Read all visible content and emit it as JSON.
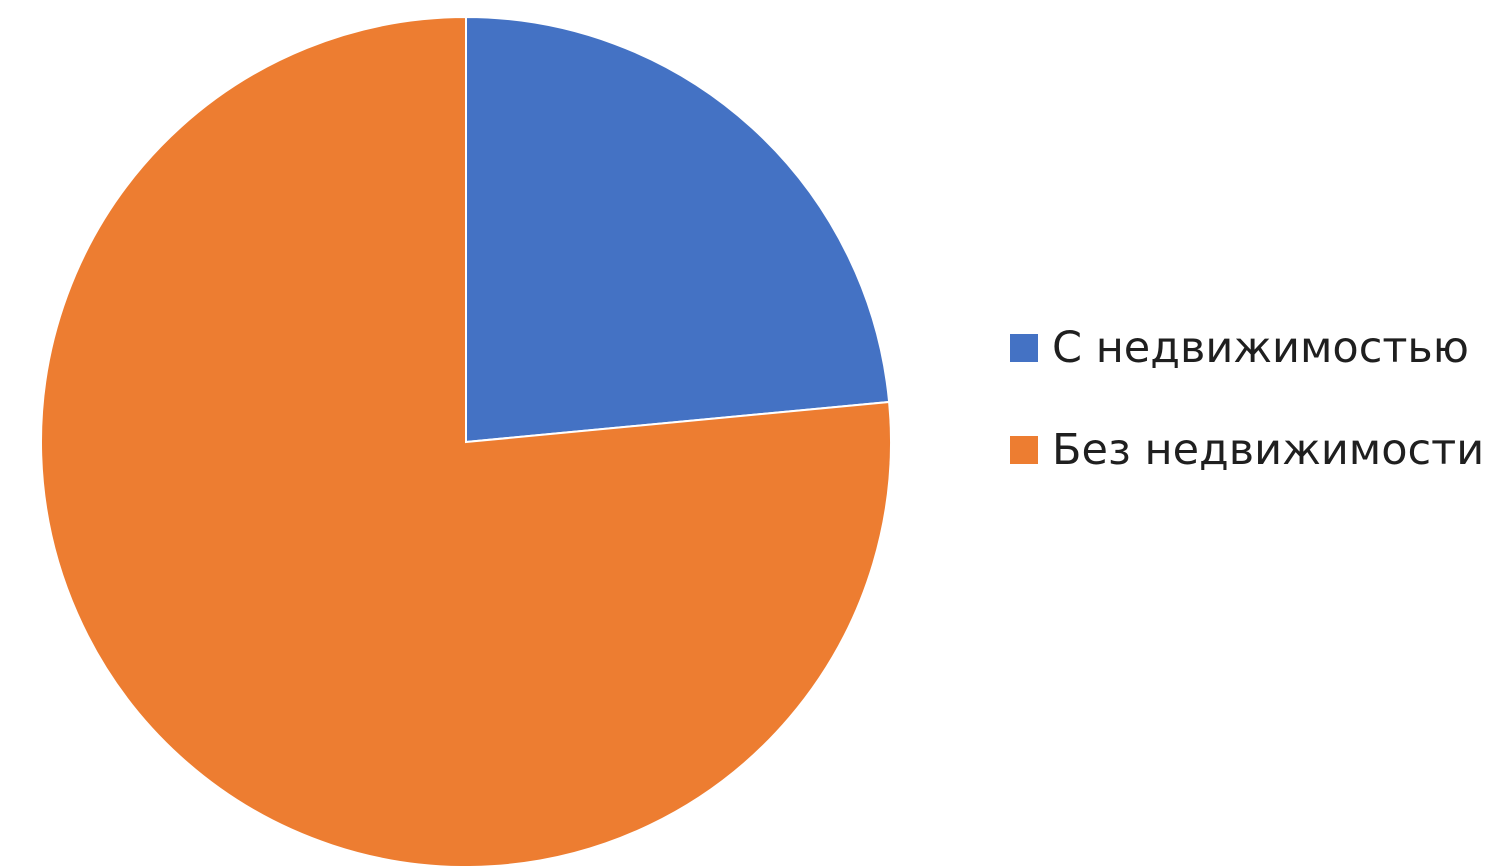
{
  "chart_data": {
    "type": "pie",
    "title": "",
    "categories": [
      "С недвижимостью",
      "Без недвижимости"
    ],
    "values": [
      23.5,
      76.5
    ],
    "colors": [
      "#4472C4",
      "#ED7D31"
    ],
    "start_angle_deg": 0,
    "direction": "clockwise",
    "legend_position": "right"
  },
  "legend": {
    "items": [
      {
        "label": "С недвижимостью",
        "color": "#4472C4"
      },
      {
        "label": "Без недвижимости",
        "color": "#ED7D31"
      }
    ]
  }
}
